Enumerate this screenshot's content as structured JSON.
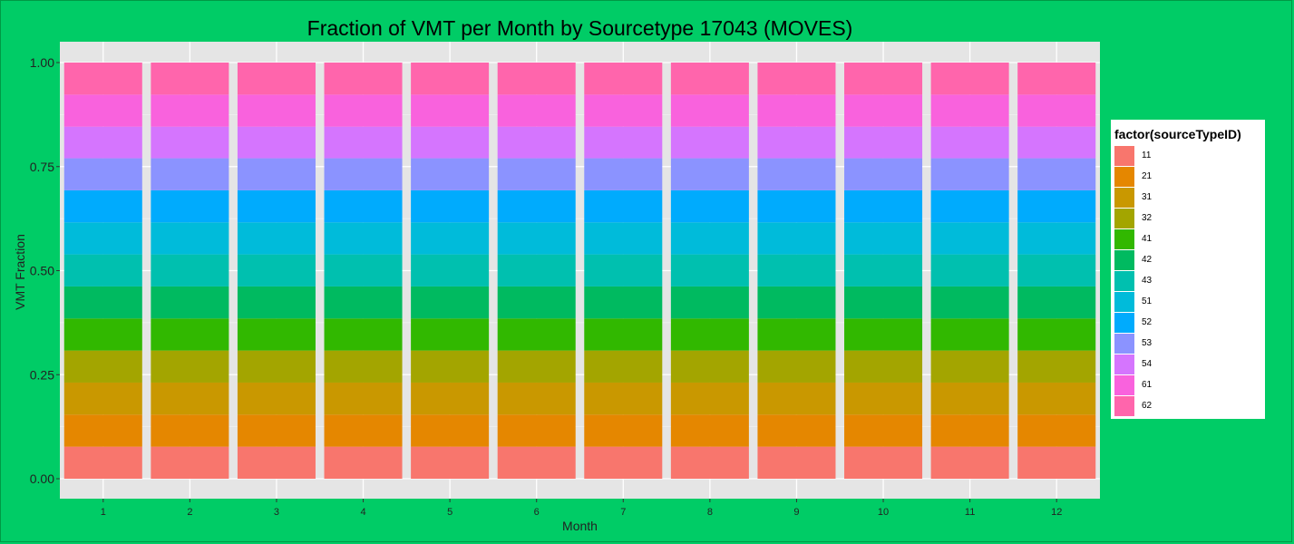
{
  "chart_data": {
    "type": "bar",
    "stacked": true,
    "title": "Fraction of VMT per Month by Sourcetype 17043 (MOVES)",
    "xlabel": "Month",
    "ylabel": "VMT Fraction",
    "ylim": [
      0,
      1
    ],
    "yticks": [
      "0.00",
      "0.25",
      "0.50",
      "0.75",
      "1.00"
    ],
    "categories": [
      "1",
      "2",
      "3",
      "4",
      "5",
      "6",
      "7",
      "8",
      "9",
      "10",
      "11",
      "12"
    ],
    "grid": true,
    "legend_position": "right",
    "legend_title": "factor(sourceTypeID)",
    "series": [
      {
        "name": "11",
        "color": "#F8766D",
        "values": [
          0.077,
          0.077,
          0.077,
          0.077,
          0.077,
          0.077,
          0.077,
          0.077,
          0.077,
          0.077,
          0.077,
          0.077
        ]
      },
      {
        "name": "21",
        "color": "#E58700",
        "values": [
          0.077,
          0.077,
          0.077,
          0.077,
          0.077,
          0.077,
          0.077,
          0.077,
          0.077,
          0.077,
          0.077,
          0.077
        ]
      },
      {
        "name": "31",
        "color": "#C99800",
        "values": [
          0.077,
          0.077,
          0.077,
          0.077,
          0.077,
          0.077,
          0.077,
          0.077,
          0.077,
          0.077,
          0.077,
          0.077
        ]
      },
      {
        "name": "32",
        "color": "#A3A500",
        "values": [
          0.077,
          0.077,
          0.077,
          0.077,
          0.077,
          0.077,
          0.077,
          0.077,
          0.077,
          0.077,
          0.077,
          0.077
        ]
      },
      {
        "name": "41",
        "color": "#31B800",
        "values": [
          0.077,
          0.077,
          0.077,
          0.077,
          0.077,
          0.077,
          0.077,
          0.077,
          0.077,
          0.077,
          0.077,
          0.077
        ]
      },
      {
        "name": "42",
        "color": "#00BA60",
        "values": [
          0.077,
          0.077,
          0.077,
          0.077,
          0.077,
          0.077,
          0.077,
          0.077,
          0.077,
          0.077,
          0.077,
          0.077
        ]
      },
      {
        "name": "43",
        "color": "#00C0AF",
        "values": [
          0.077,
          0.077,
          0.077,
          0.077,
          0.077,
          0.077,
          0.077,
          0.077,
          0.077,
          0.077,
          0.077,
          0.077
        ]
      },
      {
        "name": "51",
        "color": "#00BBDA",
        "values": [
          0.077,
          0.077,
          0.077,
          0.077,
          0.077,
          0.077,
          0.077,
          0.077,
          0.077,
          0.077,
          0.077,
          0.077
        ]
      },
      {
        "name": "52",
        "color": "#00ABFD",
        "values": [
          0.077,
          0.077,
          0.077,
          0.077,
          0.077,
          0.077,
          0.077,
          0.077,
          0.077,
          0.077,
          0.077,
          0.077
        ]
      },
      {
        "name": "53",
        "color": "#8B93FF",
        "values": [
          0.077,
          0.077,
          0.077,
          0.077,
          0.077,
          0.077,
          0.077,
          0.077,
          0.077,
          0.077,
          0.077,
          0.077
        ]
      },
      {
        "name": "54",
        "color": "#D575FE",
        "values": [
          0.076,
          0.076,
          0.076,
          0.076,
          0.076,
          0.076,
          0.076,
          0.076,
          0.076,
          0.076,
          0.076,
          0.076
        ]
      },
      {
        "name": "61",
        "color": "#F962DD",
        "values": [
          0.077,
          0.077,
          0.077,
          0.077,
          0.077,
          0.077,
          0.077,
          0.077,
          0.077,
          0.077,
          0.077,
          0.077
        ]
      },
      {
        "name": "62",
        "color": "#FF65AC",
        "values": [
          0.077,
          0.077,
          0.077,
          0.077,
          0.077,
          0.077,
          0.077,
          0.077,
          0.077,
          0.077,
          0.077,
          0.077
        ]
      }
    ]
  }
}
